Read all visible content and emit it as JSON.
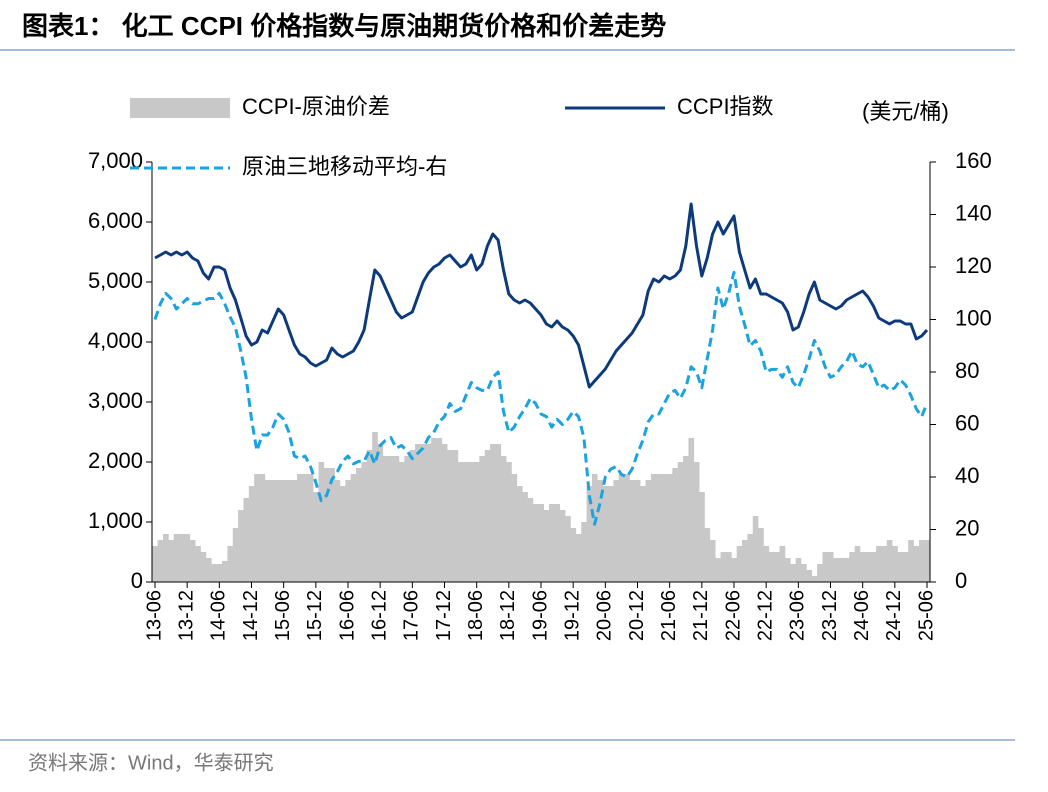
{
  "chart_data": {
    "type": "combo",
    "title": "图表1：  化工 CCPI 价格指数与原油期货价格和价差走势",
    "y2_label": "(美元/桶)",
    "source": "资料来源：Wind，华泰研究",
    "categories": [
      "13-06",
      null,
      null,
      null,
      null,
      null,
      "13-12",
      null,
      null,
      null,
      null,
      null,
      "14-06",
      null,
      null,
      null,
      null,
      null,
      "14-12",
      null,
      null,
      null,
      null,
      null,
      "15-06",
      null,
      null,
      null,
      null,
      null,
      "15-12",
      null,
      null,
      null,
      null,
      null,
      "16-06",
      null,
      null,
      null,
      null,
      null,
      "16-12",
      null,
      null,
      null,
      null,
      null,
      "17-06",
      null,
      null,
      null,
      null,
      null,
      "17-12",
      null,
      null,
      null,
      null,
      null,
      "18-06",
      null,
      null,
      null,
      null,
      null,
      "18-12",
      null,
      null,
      null,
      null,
      null,
      "19-06",
      null,
      null,
      null,
      null,
      null,
      "19-12",
      null,
      null,
      null,
      null,
      null,
      "20-06",
      null,
      null,
      null,
      null,
      null,
      "20-12",
      null,
      null,
      null,
      null,
      null,
      "21-06",
      null,
      null,
      null,
      null,
      null,
      "21-12",
      null,
      null,
      null,
      null,
      null,
      "22-06",
      null,
      null,
      null,
      null,
      null,
      "22-12",
      null,
      null,
      null,
      null,
      null,
      "23-06",
      null,
      null,
      null,
      null,
      null,
      "23-12",
      null,
      null,
      null,
      null,
      null,
      "24-06",
      null,
      null,
      null,
      null,
      null,
      "24-12",
      null,
      null,
      null,
      null,
      null,
      "25-06"
    ],
    "series": [
      {
        "name": "CCPI-原油价差",
        "kind": "area",
        "color": "#c8c8c8",
        "values": [
          600,
          700,
          800,
          700,
          800,
          800,
          800,
          700,
          600,
          500,
          400,
          300,
          300,
          350,
          600,
          900,
          1200,
          1400,
          1600,
          1800,
          1800,
          1700,
          1700,
          1700,
          1700,
          1700,
          1700,
          1800,
          1800,
          1800,
          1500,
          2000,
          1900,
          1900,
          1700,
          1600,
          1700,
          1800,
          1900,
          2000,
          2200,
          2500,
          2300,
          2100,
          2100,
          2100,
          2000,
          2100,
          2200,
          2300,
          2300,
          2300,
          2400,
          2400,
          2300,
          2200,
          2200,
          2000,
          2000,
          2000,
          2000,
          2100,
          2200,
          2300,
          2300,
          2100,
          2000,
          1800,
          1600,
          1500,
          1400,
          1300,
          1300,
          1200,
          1300,
          1300,
          1200,
          1100,
          900,
          800,
          1000,
          1600,
          1800,
          1700,
          1600,
          1600,
          1700,
          1800,
          1800,
          1700,
          1700,
          1600,
          1700,
          1800,
          1800,
          1800,
          1800,
          1900,
          2000,
          2100,
          2400,
          2000,
          1500,
          900,
          700,
          400,
          500,
          500,
          400,
          600,
          700,
          800,
          1100,
          900,
          600,
          500,
          500,
          600,
          400,
          300,
          400,
          300,
          200,
          100,
          300,
          500,
          500,
          400,
          400,
          400,
          500,
          600,
          500,
          500,
          500,
          600,
          600,
          700,
          600,
          500,
          500,
          700,
          600,
          700,
          700
        ]
      },
      {
        "name": "CCPI指数",
        "kind": "line",
        "color": "#0d3a7a",
        "values": [
          5400,
          5450,
          5500,
          5450,
          5500,
          5450,
          5500,
          5400,
          5350,
          5150,
          5050,
          5250,
          5250,
          5200,
          4900,
          4700,
          4400,
          4100,
          3950,
          4000,
          4200,
          4150,
          4350,
          4550,
          4450,
          4200,
          3950,
          3800,
          3750,
          3650,
          3600,
          3650,
          3700,
          3900,
          3800,
          3750,
          3800,
          3850,
          4000,
          4200,
          4700,
          5200,
          5100,
          4900,
          4700,
          4500,
          4400,
          4450,
          4500,
          4750,
          5000,
          5150,
          5250,
          5300,
          5400,
          5450,
          5350,
          5250,
          5300,
          5450,
          5200,
          5300,
          5600,
          5800,
          5700,
          5200,
          4800,
          4700,
          4650,
          4700,
          4650,
          4550,
          4450,
          4300,
          4250,
          4350,
          4250,
          4200,
          4100,
          3950,
          3600,
          3250,
          3350,
          3450,
          3550,
          3700,
          3850,
          3950,
          4050,
          4150,
          4300,
          4450,
          4850,
          5050,
          5000,
          5100,
          5050,
          5100,
          5200,
          5600,
          6300,
          5600,
          5100,
          5400,
          5800,
          6000,
          5800,
          5950,
          6100,
          5500,
          5200,
          4900,
          5050,
          4800,
          4800,
          4750,
          4700,
          4650,
          4500,
          4200,
          4250,
          4500,
          4800,
          5000,
          4700,
          4650,
          4600,
          4550,
          4600,
          4700,
          4750,
          4800,
          4850,
          4750,
          4600,
          4400,
          4350,
          4300,
          4350,
          4350,
          4300,
          4300,
          4050,
          4100,
          4200
        ]
      },
      {
        "name": "原油三地移动平均-右",
        "kind": "line",
        "dashed": true,
        "axis": "y2",
        "color": "#1aa3e0",
        "values": [
          100,
          106,
          110,
          108,
          104,
          106,
          108,
          106,
          106,
          107,
          108,
          108,
          110,
          106,
          101,
          97,
          88,
          78,
          62,
          50,
          56,
          56,
          59,
          64,
          62,
          57,
          48,
          47,
          48,
          44,
          38,
          31,
          33,
          39,
          42,
          46,
          48,
          45,
          46,
          46,
          50,
          45,
          52,
          54,
          55,
          51,
          52,
          50,
          47,
          49,
          51,
          55,
          57,
          61,
          63,
          68,
          65,
          66,
          71,
          76,
          74,
          73,
          73,
          78,
          80,
          65,
          57,
          59,
          63,
          66,
          70,
          68,
          64,
          63,
          59,
          62,
          60,
          62,
          65,
          63,
          55,
          33,
          22,
          30,
          40,
          43,
          44,
          41,
          40,
          43,
          49,
          54,
          61,
          64,
          64,
          68,
          72,
          73,
          70,
          74,
          82,
          80,
          74,
          85,
          96,
          112,
          104,
          110,
          118,
          105,
          98,
          90,
          92,
          88,
          80,
          81,
          81,
          78,
          82,
          76,
          74,
          79,
          85,
          92,
          88,
          82,
          78,
          79,
          82,
          84,
          88,
          83,
          82,
          84,
          79,
          74,
          75,
          73,
          74,
          77,
          75,
          71,
          66,
          63,
          68
        ]
      }
    ],
    "ylim": [
      0,
      7000
    ],
    "yticks": [
      0,
      {
        "value": 1000,
        "label": "1,000"
      },
      {
        "value": 2000,
        "label": "2,000"
      },
      {
        "value": 3000,
        "label": "3,000"
      },
      {
        "value": 4000,
        "label": "4,000"
      },
      {
        "value": 5000,
        "label": "5,000"
      },
      {
        "value": 6000,
        "label": "6,000"
      },
      {
        "value": 7000,
        "label": "7,000"
      }
    ],
    "y2lim": [
      0,
      160
    ],
    "y2ticks": [
      0,
      20,
      40,
      60,
      80,
      100,
      120,
      140,
      160
    ]
  }
}
